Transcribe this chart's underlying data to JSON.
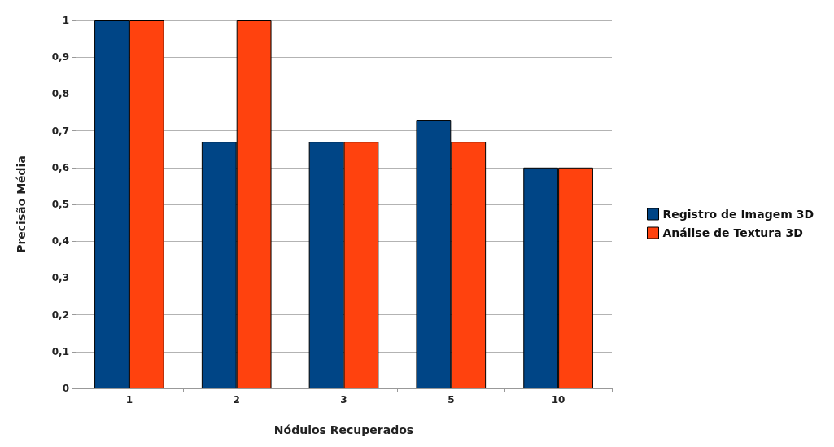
{
  "chart_data": {
    "type": "bar",
    "xlabel": "Nódulos Recuperados",
    "ylabel": "Precisão Média",
    "categories": [
      "1",
      "2",
      "3",
      "5",
      "10"
    ],
    "series": [
      {
        "name": "Registro de Imagem 3D",
        "color": "#004586",
        "values": [
          1,
          0.67,
          0.67,
          0.73,
          0.6
        ]
      },
      {
        "name": "Análise de Textura 3D",
        "color": "#ff420e",
        "values": [
          1,
          1,
          0.67,
          0.67,
          0.6
        ]
      }
    ],
    "ylim": [
      0,
      1
    ],
    "yticks": [
      0,
      {
        "value": 0.1,
        "label": "0,1"
      },
      {
        "value": 0.2,
        "label": "0,2"
      },
      {
        "value": 0.3,
        "label": "0,3"
      },
      {
        "value": 0.4,
        "label": "0,4"
      },
      {
        "value": 0.5,
        "label": "0,5"
      },
      {
        "value": 0.6,
        "label": "0,6"
      },
      {
        "value": 0.7,
        "label": "0,7"
      },
      {
        "value": 0.8,
        "label": "0,8"
      },
      {
        "value": 0.9,
        "label": "0,9"
      },
      1
    ],
    "grid": "y",
    "legend": "right"
  }
}
